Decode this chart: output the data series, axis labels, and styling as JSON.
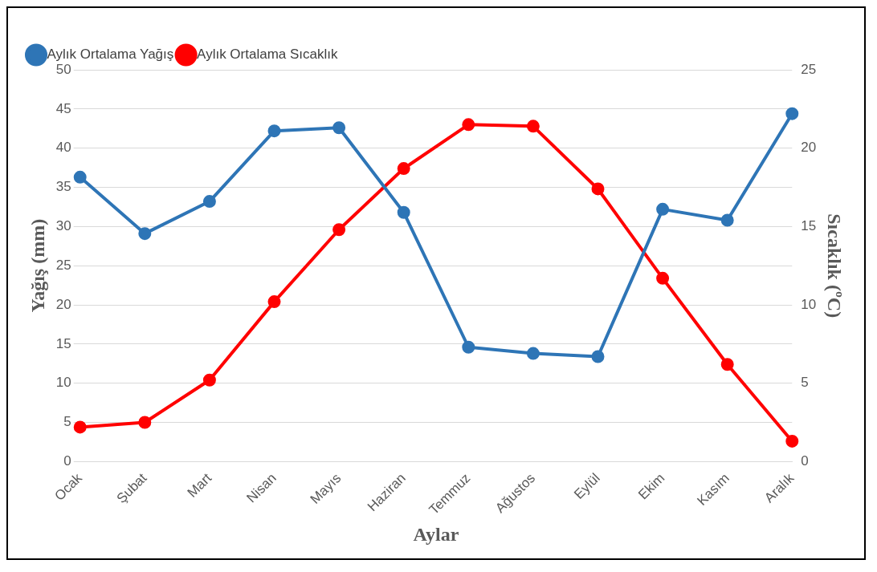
{
  "chart_data": {
    "type": "line",
    "xlabel": "Aylar",
    "ylabel": "Yağış (mm)",
    "y2label": "Sıcaklık (ºC)",
    "categories": [
      "Ocak",
      "Şubat",
      "Mart",
      "Nisan",
      "Mayıs",
      "Haziran",
      "Temmuz",
      "Ağustos",
      "Eylül",
      "Ekim",
      "Kasım",
      "Aralık"
    ],
    "series": [
      {
        "name": "Aylık Ortalama Yağış",
        "color": "#2e75b6",
        "values": [
          36.3,
          29.1,
          33.2,
          42.2,
          42.6,
          31.8,
          14.6,
          13.8,
          13.4,
          32.2,
          30.8,
          44.4
        ]
      },
      {
        "name": "Aylık Ortalama Sıcaklık",
        "color": "#ff0000",
        "axis": "y2",
        "values": [
          2.2,
          2.5,
          5.2,
          10.2,
          14.8,
          18.7,
          21.5,
          21.4,
          17.4,
          11.7,
          6.2,
          1.3
        ]
      }
    ],
    "ylim": [
      0,
      50
    ],
    "yticks": [
      0,
      5,
      10,
      15,
      20,
      25,
      30,
      35,
      40,
      45,
      50
    ],
    "y2lim": [
      0,
      25
    ],
    "y2ticks": [
      0,
      5,
      10,
      15,
      20,
      25
    ],
    "grid": "y",
    "legend": "top left",
    "marker": "circle",
    "line_style": "solid"
  }
}
